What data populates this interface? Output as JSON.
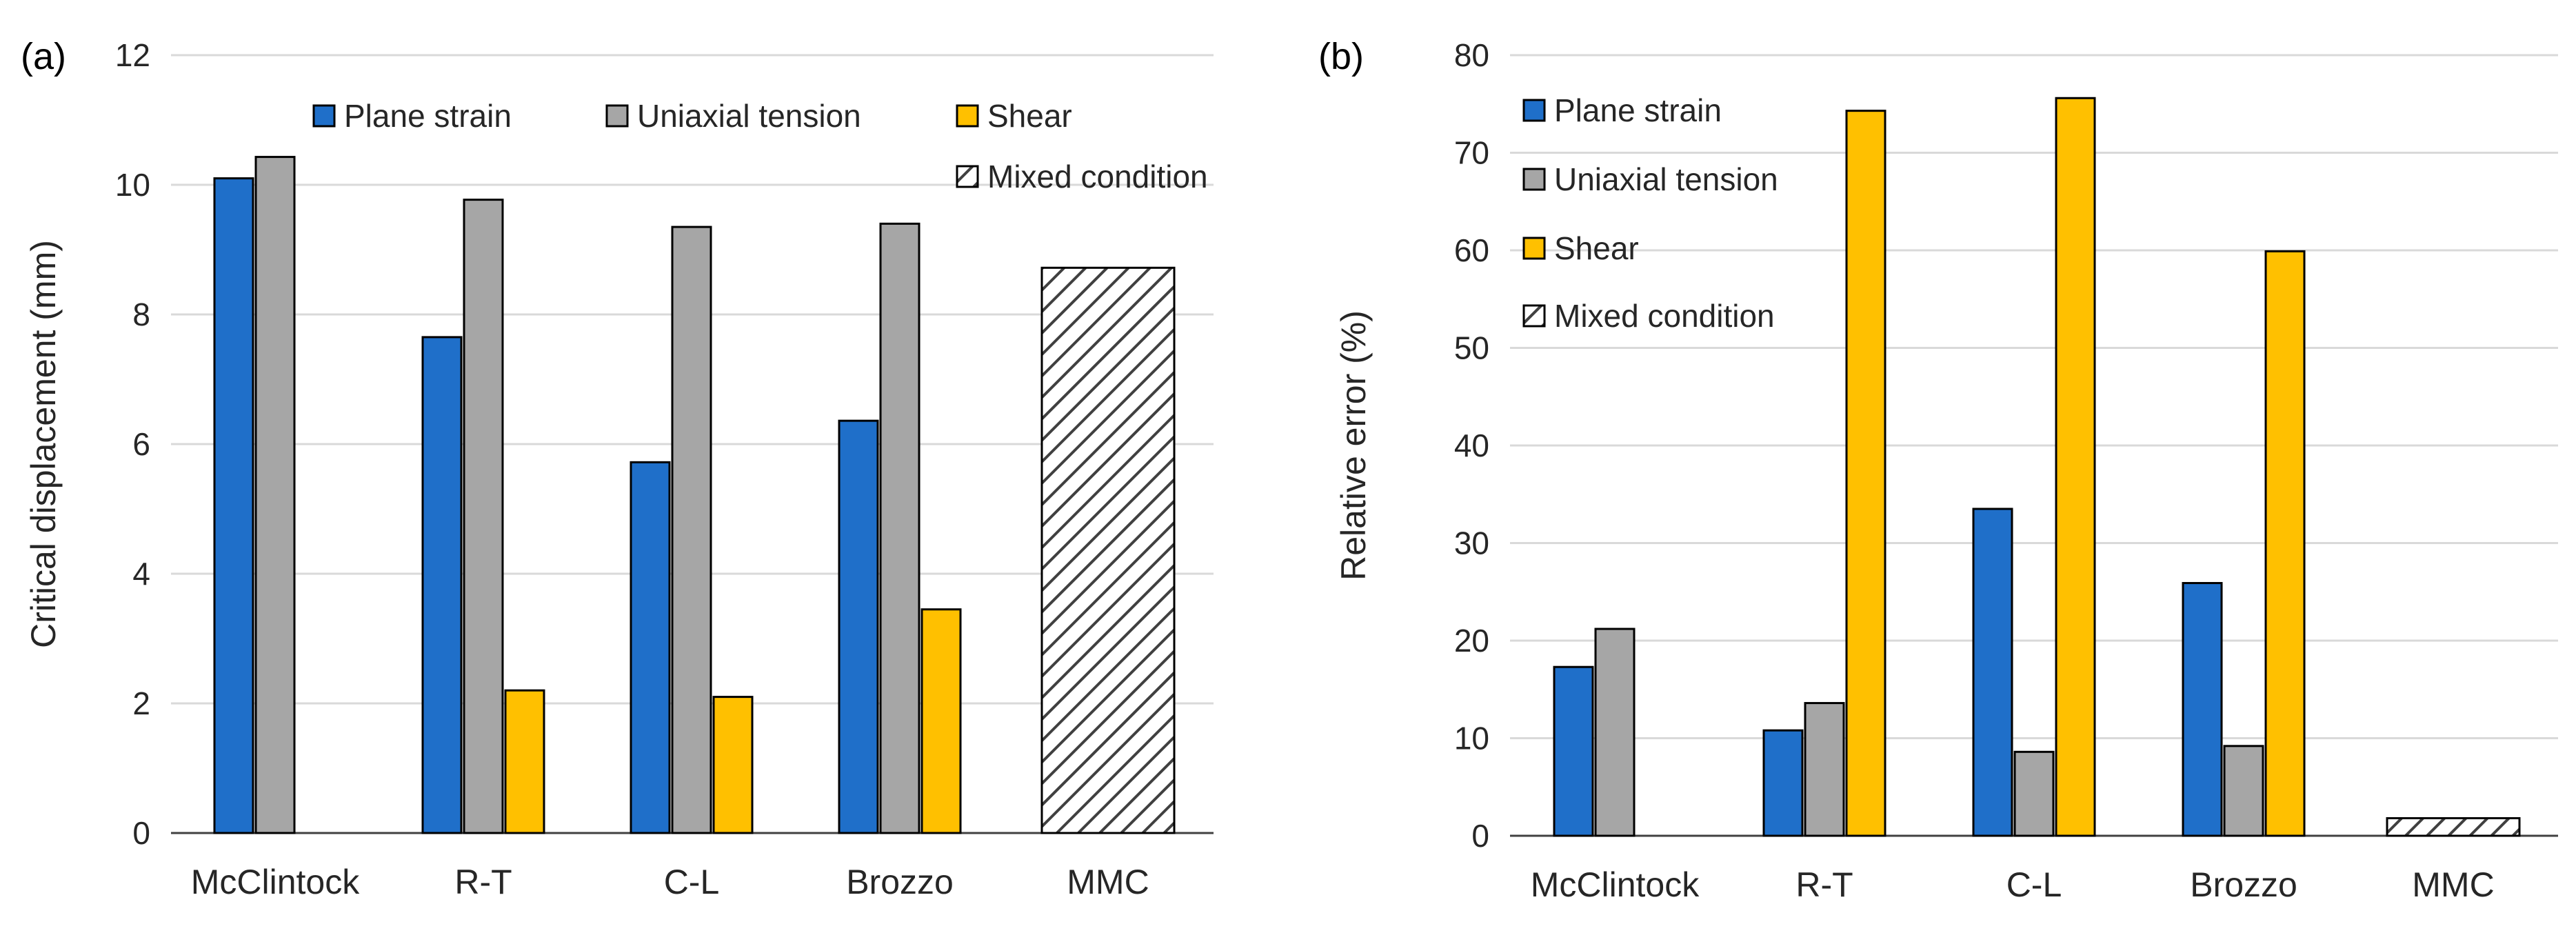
{
  "colors": {
    "plane_strain": "#1F6FC9",
    "uniaxial_tension": "#A6A6A6",
    "shear": "#FFC000",
    "gridline": "#D9D9D9",
    "axis": "#404040",
    "bar_edge": "#000000"
  },
  "chart_data": [
    {
      "type": "bar",
      "panel_label": "(a)",
      "title": "",
      "xlabel": "",
      "ylabel": "Critical displacement (mm)",
      "ylim": [
        0,
        12
      ],
      "yticks": [
        "0",
        "2",
        "4",
        "6",
        "8",
        "10",
        "12"
      ],
      "grid": true,
      "legend_position": "top",
      "categories": [
        "McClintock",
        "R-T",
        "C-L",
        "Brozzo",
        "MMC"
      ],
      "series": [
        {
          "name": "Plane strain",
          "color_key": "plane_strain",
          "values": [
            10.1,
            7.65,
            5.72,
            6.36,
            null
          ]
        },
        {
          "name": "Uniaxial tension",
          "color_key": "uniaxial_tension",
          "values": [
            10.43,
            9.77,
            9.35,
            9.4,
            null
          ]
        },
        {
          "name": "Shear",
          "color_key": "shear",
          "values": [
            null,
            2.2,
            2.1,
            3.45,
            null
          ]
        },
        {
          "name": "Mixed condition",
          "pattern": "hatch",
          "values": [
            null,
            null,
            null,
            null,
            8.72
          ]
        }
      ]
    },
    {
      "type": "bar",
      "panel_label": "(b)",
      "title": "",
      "xlabel": "",
      "ylabel": "Relative error (%)",
      "ylim": [
        0,
        80
      ],
      "yticks": [
        "0",
        "10",
        "20",
        "30",
        "40",
        "50",
        "60",
        "70",
        "80"
      ],
      "grid": true,
      "legend_position": "top-left",
      "categories": [
        "McClintock",
        "R-T",
        "C-L",
        "Brozzo",
        "MMC"
      ],
      "series": [
        {
          "name": "Plane strain",
          "color_key": "plane_strain",
          "values": [
            17.3,
            10.8,
            33.5,
            25.9,
            null
          ]
        },
        {
          "name": "Uniaxial tension",
          "color_key": "uniaxial_tension",
          "values": [
            21.2,
            13.6,
            8.6,
            9.2,
            null
          ]
        },
        {
          "name": "Shear",
          "color_key": "shear",
          "values": [
            null,
            74.3,
            75.6,
            59.9,
            null
          ]
        },
        {
          "name": "Mixed condition",
          "pattern": "hatch",
          "values": [
            null,
            null,
            null,
            null,
            1.8
          ]
        }
      ]
    }
  ]
}
